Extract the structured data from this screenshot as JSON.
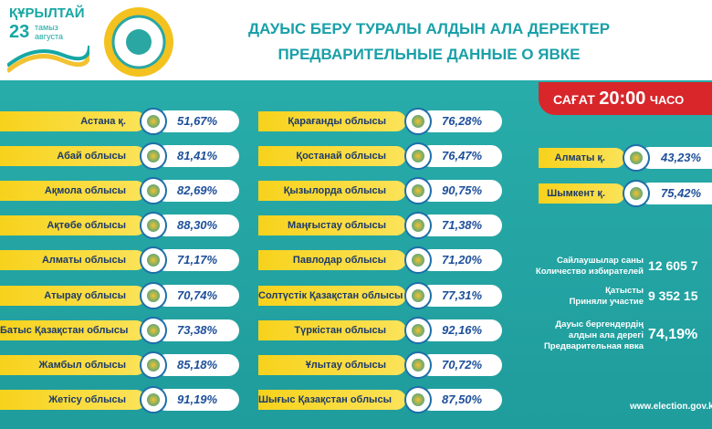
{
  "header": {
    "logo": {
      "title": "ҚҰРЫЛТАЙ",
      "day": "23",
      "month_kz": "тамыз",
      "month_ru": "августа"
    },
    "title_kz": "ДАУЫС БЕРУ ТУРАЛЫ АЛДЫН АЛА ДЕРЕКТЕР",
    "title_ru": "ПРЕДВАРИТЕЛЬНЫЕ ДАННЫЕ О ЯВКЕ"
  },
  "time_banner": {
    "label_kz": "САҒАТ",
    "time": "20:00",
    "label_ru": "ЧАСО"
  },
  "columns": [
    [
      {
        "name": "Астана қ.",
        "value": "51,67%"
      },
      {
        "name": "Абай облысы",
        "value": "81,41%"
      },
      {
        "name": "Ақмола облысы",
        "value": "82,69%"
      },
      {
        "name": "Ақтөбе облысы",
        "value": "88,30%"
      },
      {
        "name": "Алматы облысы",
        "value": "71,17%"
      },
      {
        "name": "Атырау облысы",
        "value": "70,74%"
      },
      {
        "name": "Батыс Қазақстан облысы",
        "value": "73,38%"
      },
      {
        "name": "Жамбыл облысы",
        "value": "85,18%"
      },
      {
        "name": "Жетісу облысы",
        "value": "91,19%"
      }
    ],
    [
      {
        "name": "Қарағанды облысы",
        "value": "76,28%"
      },
      {
        "name": "Қостанай облысы",
        "value": "76,47%"
      },
      {
        "name": "Қызылорда облысы",
        "value": "90,75%"
      },
      {
        "name": "Маңғыстау облысы",
        "value": "71,38%"
      },
      {
        "name": "Павлодар облысы",
        "value": "71,20%"
      },
      {
        "name": "Солтүстік Қазақстан облысы",
        "value": "77,31%"
      },
      {
        "name": "Түркістан облысы",
        "value": "92,16%"
      },
      {
        "name": "Ұлытау облысы",
        "value": "70,72%"
      },
      {
        "name": "Шығыс Қазақстан облысы",
        "value": "87,50%"
      }
    ],
    [
      {
        "name": "Алматы қ.",
        "value": "43,23%"
      },
      {
        "name": "Шымкент қ.",
        "value": "75,42%"
      }
    ]
  ],
  "stats": [
    {
      "label_kz": "Сайлаушылар саны",
      "label_ru": "Количество избирателей",
      "value": "12 605 7"
    },
    {
      "label_kz": "Қатысты",
      "label_ru": "Приняли участие",
      "value": "9 352 15"
    },
    {
      "label_kz": "Дауыс бергендердің алдын ала дерегі",
      "label_ru": "Предварительная явка",
      "value": "74,19%"
    }
  ],
  "footer": {
    "website": "www.election.gov.k"
  }
}
